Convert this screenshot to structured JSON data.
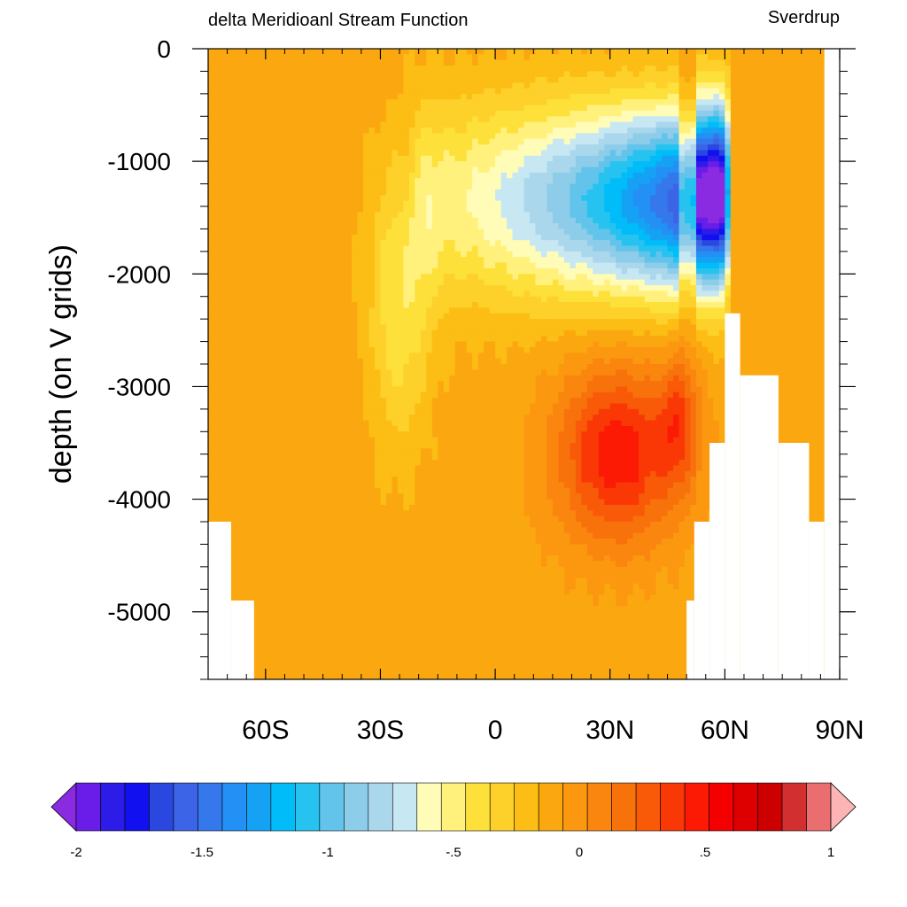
{
  "chart_data": {
    "type": "heatmap",
    "title": "delta Meridioanl Stream Function",
    "units": "Sverdrup",
    "ylabel": "depth (on V grids)",
    "xlabel": "",
    "xlim": [
      -75,
      90
    ],
    "ylim": [
      -5600,
      0
    ],
    "x_ticks": [
      {
        "value": -60,
        "label": "60S"
      },
      {
        "value": -30,
        "label": "30S"
      },
      {
        "value": 0,
        "label": "0"
      },
      {
        "value": 30,
        "label": "30N"
      },
      {
        "value": 60,
        "label": "60N"
      },
      {
        "value": 90,
        "label": "90N"
      }
    ],
    "y_ticks": [
      {
        "value": 0,
        "label": "0"
      },
      {
        "value": -1000,
        "label": "-1000"
      },
      {
        "value": -2000,
        "label": "-2000"
      },
      {
        "value": -3000,
        "label": "-3000"
      },
      {
        "value": -4000,
        "label": "-4000"
      },
      {
        "value": -5000,
        "label": "-5000"
      }
    ],
    "grid": false,
    "colorbar": {
      "placement": "bottom",
      "levels_min": -2,
      "levels_max": 1,
      "step": 0.1,
      "colors": [
        "#8a2be2",
        "#6a1de8",
        "#2d1be8",
        "#1010f0",
        "#2a48e0",
        "#3c64e6",
        "#3478ec",
        "#2290f4",
        "#16a2f4",
        "#00bcf8",
        "#26c3f0",
        "#62c4ea",
        "#8ecdea",
        "#abd7ec",
        "#c7e7f2",
        "#fffcb8",
        "#fff17c",
        "#fde03a",
        "#fdd02a",
        "#fcbd14",
        "#fba810",
        "#fb9810",
        "#fb860f",
        "#f8720c",
        "#f85a08",
        "#fa3806",
        "#fc1a04",
        "#f40000",
        "#de0000",
        "#cc0000",
        "#d23030",
        "#ea6e70",
        "#fcb4b4"
      ],
      "tick_labels": [
        {
          "value": -2,
          "label": "-2"
        },
        {
          "value": -1.5,
          "label": "-1.5"
        },
        {
          "value": -1,
          "label": "-1"
        },
        {
          "value": -0.5,
          "label": "-.5"
        },
        {
          "value": 0,
          "label": "0"
        },
        {
          "value": 0.5,
          "label": ".5"
        },
        {
          "value": 1,
          "label": "1"
        }
      ]
    },
    "features": [
      {
        "name": "upper negative cell",
        "min_value": -2.0,
        "lat_range": [
          -22,
          62
        ],
        "depth_range": [
          -2600,
          -400
        ],
        "center": [
          43,
          -1400
        ]
      },
      {
        "name": "deep positive cell",
        "max_value": 0.6,
        "lat_range": [
          15,
          58
        ],
        "depth_range": [
          -4600,
          -2600
        ],
        "center": [
          32,
          -3600
        ]
      },
      {
        "name": "background",
        "value": -0.05
      }
    ],
    "bathymetry_mask": [
      {
        "lat_range": [
          -75,
          -69
        ],
        "depth_top": -4200
      },
      {
        "lat_range": [
          -69,
          -63
        ],
        "depth_top": -4900
      },
      {
        "lat_range": [
          50,
          52
        ],
        "depth_top": -4900
      },
      {
        "lat_range": [
          52,
          56
        ],
        "depth_top": -4200
      },
      {
        "lat_range": [
          56,
          60
        ],
        "depth_top": -3500
      },
      {
        "lat_range": [
          60,
          64
        ],
        "depth_top": -2350
      },
      {
        "lat_range": [
          64,
          74
        ],
        "depth_top": -2900
      },
      {
        "lat_range": [
          74,
          82
        ],
        "depth_top": -3500
      },
      {
        "lat_range": [
          82,
          86
        ],
        "depth_top": -4200
      },
      {
        "lat_range": [
          86,
          90
        ],
        "depth_top": 0
      }
    ]
  }
}
